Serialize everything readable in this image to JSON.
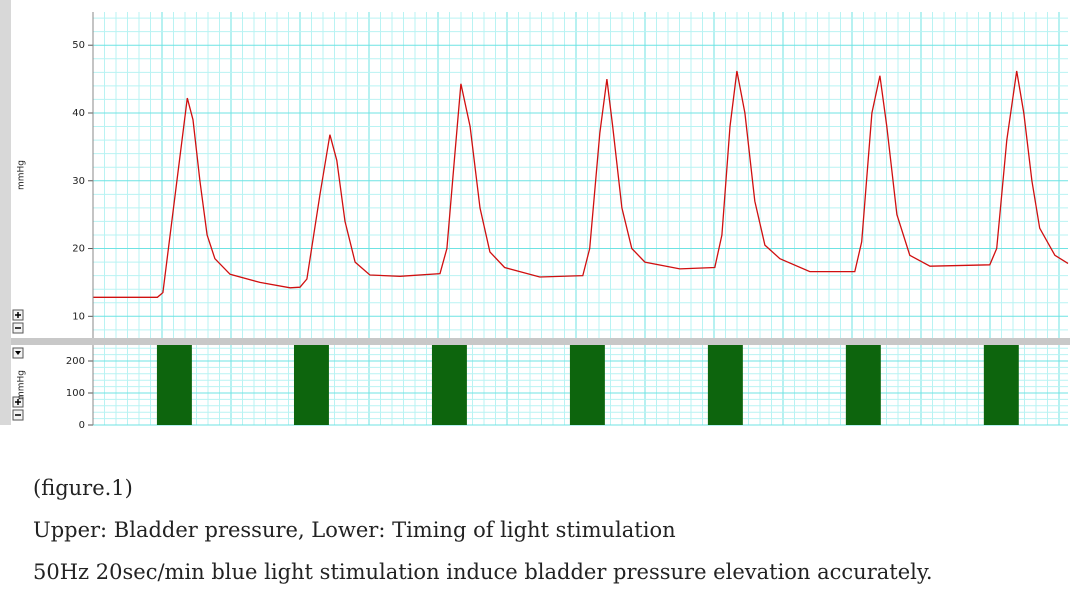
{
  "chart_data": [
    {
      "type": "line",
      "ylabel": "mmHg",
      "x": [
        0,
        28,
        30.4,
        35,
        41,
        43.5,
        46.5,
        49.6,
        53,
        59.6,
        72.6,
        85.7,
        90,
        93,
        98.7,
        103,
        106,
        109.6,
        114,
        120.4,
        133.5,
        150.9,
        153.9,
        157.4,
        160,
        164,
        168.3,
        172.6,
        179,
        194.3,
        213,
        216,
        220.4,
        223.5,
        226,
        230,
        234.3,
        240,
        255.2,
        270.4,
        273.5,
        277,
        280,
        283.5,
        287.8,
        292.2,
        298.7,
        311.7,
        331.3,
        334.3,
        338.7,
        342.2,
        345.2,
        349.6,
        355.2,
        364,
        390,
        393,
        397.4,
        401.7,
        404.8,
        408.3,
        411.7,
        418.3,
        424
      ],
      "series": [
        {
          "color": "#d01010",
          "values": [
            12.8,
            12.8,
            13.5,
            26,
            42.2,
            39,
            30,
            22,
            18.5,
            16.2,
            15,
            14.2,
            14.3,
            15.5,
            28,
            36.8,
            33,
            24,
            18,
            16.1,
            15.9,
            16.3,
            20,
            34,
            44.3,
            38,
            26,
            19.5,
            17.2,
            15.8,
            16,
            20,
            37,
            45,
            38,
            26,
            20,
            18,
            17,
            17.2,
            22,
            38,
            46.2,
            40,
            27,
            20.5,
            18.5,
            16.6,
            16.6,
            21,
            40,
            45.5,
            38,
            25,
            19,
            17.4,
            17.6,
            20,
            36,
            46.2,
            40,
            30,
            23,
            19,
            17.8
          ]
        }
      ],
      "xlim": [
        0,
        424
      ],
      "ylim": [
        6.8,
        54.9
      ],
      "yticks": [
        10,
        20,
        30,
        40,
        50
      ],
      "grid": true
    },
    {
      "type": "bar",
      "ylabel": "mmHg",
      "x": [
        27.8,
        87.4,
        147.4,
        207.4,
        267.4,
        327.4,
        387.4
      ],
      "x_end": [
        43,
        102.6,
        162.6,
        222.6,
        282.6,
        342.6,
        402.6
      ],
      "values": [
        250,
        250,
        250,
        250,
        250,
        250,
        250
      ],
      "color": "#0d650d",
      "xlim": [
        0,
        424
      ],
      "ylim": [
        0,
        250
      ],
      "yticks": [
        0,
        100,
        200
      ],
      "grid": true
    }
  ],
  "caption": [
    "(figure.1)",
    "Upper: Bladder pressure, Lower: Timing of light stimulation",
    "50Hz 20sec/min blue light stimulation induce bladder pressure elevation accurately."
  ]
}
